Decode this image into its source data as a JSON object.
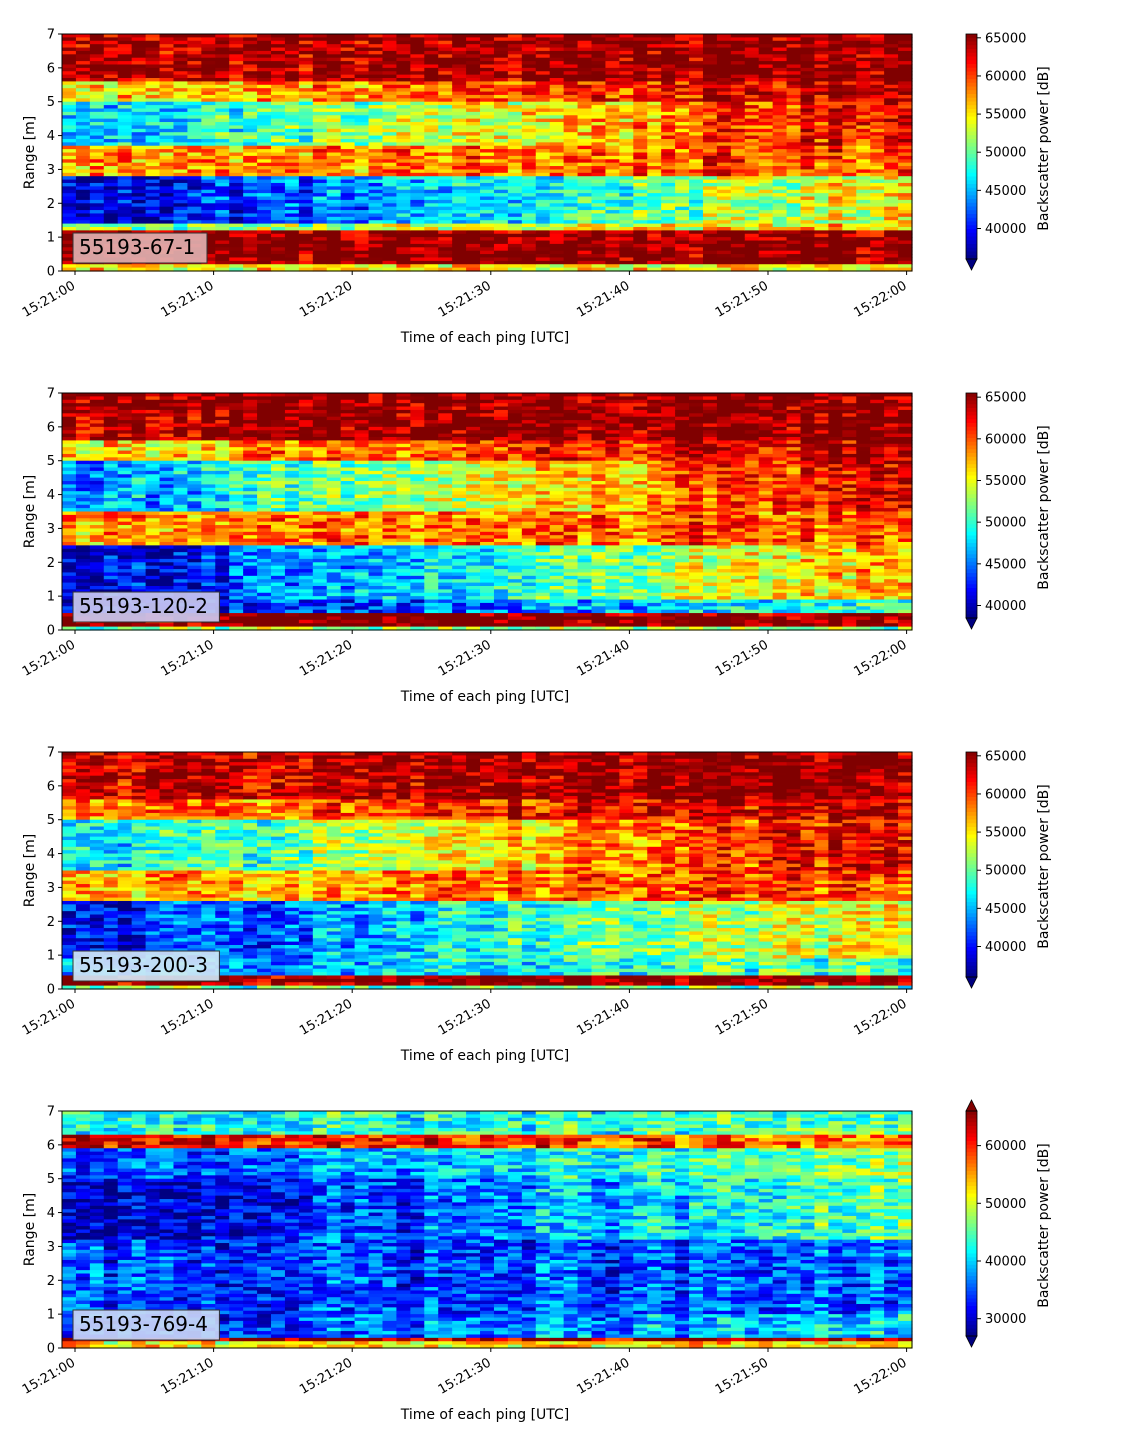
{
  "chart_data": [
    {
      "type": "heatmap",
      "label": "55193-67-1",
      "xlabel": "Time of each ping [UTC]",
      "ylabel": "Range [m]",
      "colorbar_label": "Backscatter power [dB]",
      "colormap": "jet",
      "x_ticks": [
        "15:21:00",
        "15:21:10",
        "15:21:20",
        "15:21:30",
        "15:21:40",
        "15:21:50",
        "15:22:00"
      ],
      "y_ticks": [
        "0",
        "1",
        "2",
        "3",
        "4",
        "5",
        "6",
        "7"
      ],
      "xlim": [
        "15:21:00",
        "15:22:00"
      ],
      "ylim": [
        0,
        7
      ],
      "clim": [
        36000,
        65500
      ],
      "colorbar_ticks": [
        "40000",
        "45000",
        "50000",
        "55000",
        "60000",
        "65000"
      ],
      "colorbar_extend": "min",
      "label_box_color": "#e0b0b0",
      "bands": [
        {
          "range_m": [
            0.0,
            0.2
          ],
          "start": 55000,
          "end": 55000
        },
        {
          "range_m": [
            0.2,
            1.15
          ],
          "start": 65500,
          "end": 65500
        },
        {
          "range_m": [
            1.15,
            1.4
          ],
          "start": 50000,
          "end": 56000
        },
        {
          "range_m": [
            1.4,
            2.8
          ],
          "start": 38000,
          "end": 55000
        },
        {
          "range_m": [
            2.8,
            3.7
          ],
          "start": 57000,
          "end": 60000
        },
        {
          "range_m": [
            3.7,
            5.0
          ],
          "start": 45000,
          "end": 63000
        },
        {
          "range_m": [
            5.0,
            5.6
          ],
          "start": 55000,
          "end": 64000
        },
        {
          "range_m": [
            5.6,
            7.0
          ],
          "start": 64000,
          "end": 65500
        }
      ]
    },
    {
      "type": "heatmap",
      "label": "55193-120-2",
      "xlabel": "Time of each ping [UTC]",
      "ylabel": "Range [m]",
      "colorbar_label": "Backscatter power [dB]",
      "colormap": "jet",
      "x_ticks": [
        "15:21:00",
        "15:21:10",
        "15:21:20",
        "15:21:30",
        "15:21:40",
        "15:21:50",
        "15:22:00"
      ],
      "y_ticks": [
        "0",
        "1",
        "2",
        "3",
        "4",
        "5",
        "6",
        "7"
      ],
      "xlim": [
        "15:21:00",
        "15:22:00"
      ],
      "ylim": [
        0,
        7
      ],
      "clim": [
        38500,
        65500
      ],
      "colorbar_ticks": [
        "40000",
        "45000",
        "50000",
        "55000",
        "60000",
        "65000"
      ],
      "colorbar_extend": "min",
      "label_box_color": "#c9c9f0",
      "bands": [
        {
          "range_m": [
            0.0,
            0.15
          ],
          "start": 52000,
          "end": 52000
        },
        {
          "range_m": [
            0.15,
            0.5
          ],
          "start": 65500,
          "end": 65500
        },
        {
          "range_m": [
            0.5,
            0.9
          ],
          "start": 40000,
          "end": 50000
        },
        {
          "range_m": [
            0.9,
            2.5
          ],
          "start": 40000,
          "end": 58000
        },
        {
          "range_m": [
            2.5,
            3.5
          ],
          "start": 58000,
          "end": 60000
        },
        {
          "range_m": [
            3.5,
            5.0
          ],
          "start": 45000,
          "end": 64000
        },
        {
          "range_m": [
            5.0,
            5.6
          ],
          "start": 56000,
          "end": 64500
        },
        {
          "range_m": [
            5.6,
            7.0
          ],
          "start": 64500,
          "end": 65500
        }
      ]
    },
    {
      "type": "heatmap",
      "label": "55193-200-3",
      "xlabel": "Time of each ping [UTC]",
      "ylabel": "Range [m]",
      "colorbar_label": "Backscatter power [dB]",
      "colormap": "jet",
      "x_ticks": [
        "15:21:00",
        "15:21:10",
        "15:21:20",
        "15:21:30",
        "15:21:40",
        "15:21:50",
        "15:22:00"
      ],
      "y_ticks": [
        "0",
        "1",
        "2",
        "3",
        "4",
        "5",
        "6",
        "7"
      ],
      "xlim": [
        "15:21:00",
        "15:22:00"
      ],
      "ylim": [
        0,
        7
      ],
      "clim": [
        36000,
        65500
      ],
      "colorbar_ticks": [
        "40000",
        "45000",
        "50000",
        "55000",
        "60000",
        "65000"
      ],
      "colorbar_extend": "min",
      "label_box_color": "#cfe6f5",
      "bands": [
        {
          "range_m": [
            0.0,
            0.15
          ],
          "start": 50000,
          "end": 50000
        },
        {
          "range_m": [
            0.15,
            0.45
          ],
          "start": 65000,
          "end": 65000
        },
        {
          "range_m": [
            0.45,
            0.9
          ],
          "start": 43000,
          "end": 50000
        },
        {
          "range_m": [
            0.9,
            2.6
          ],
          "start": 39000,
          "end": 55000
        },
        {
          "range_m": [
            2.6,
            3.5
          ],
          "start": 56000,
          "end": 60000
        },
        {
          "range_m": [
            3.5,
            5.0
          ],
          "start": 46000,
          "end": 63000
        },
        {
          "range_m": [
            5.0,
            5.6
          ],
          "start": 57000,
          "end": 64000
        },
        {
          "range_m": [
            5.6,
            7.0
          ],
          "start": 63000,
          "end": 65500
        }
      ]
    },
    {
      "type": "heatmap",
      "label": "55193-769-4",
      "xlabel": "Time of each ping [UTC]",
      "ylabel": "Range [m]",
      "colorbar_label": "Backscatter power [dB]",
      "colormap": "jet",
      "x_ticks": [
        "15:21:00",
        "15:21:10",
        "15:21:20",
        "15:21:30",
        "15:21:40",
        "15:21:50",
        "15:22:00"
      ],
      "y_ticks": [
        "0",
        "1",
        "2",
        "3",
        "4",
        "5",
        "6",
        "7"
      ],
      "xlim": [
        "15:21:00",
        "15:22:00"
      ],
      "ylim": [
        0,
        7
      ],
      "clim": [
        27000,
        66000
      ],
      "colorbar_ticks": [
        "30000",
        "40000",
        "50000",
        "60000"
      ],
      "colorbar_extend": "both",
      "label_box_color": "#c9d6f5",
      "bands": [
        {
          "range_m": [
            0.0,
            0.2
          ],
          "start": 52000,
          "end": 52000
        },
        {
          "range_m": [
            0.2,
            0.35
          ],
          "start": 64000,
          "end": 64000
        },
        {
          "range_m": [
            0.35,
            1.0
          ],
          "start": 33000,
          "end": 40000
        },
        {
          "range_m": [
            1.0,
            3.2
          ],
          "start": 34000,
          "end": 35000
        },
        {
          "range_m": [
            3.2,
            5.0
          ],
          "start": 28000,
          "end": 45000
        },
        {
          "range_m": [
            5.0,
            5.9
          ],
          "start": 33000,
          "end": 47000
        },
        {
          "range_m": [
            5.9,
            6.3
          ],
          "start": 62000,
          "end": 56000
        },
        {
          "range_m": [
            6.3,
            7.0
          ],
          "start": 42000,
          "end": 44000
        }
      ]
    }
  ]
}
